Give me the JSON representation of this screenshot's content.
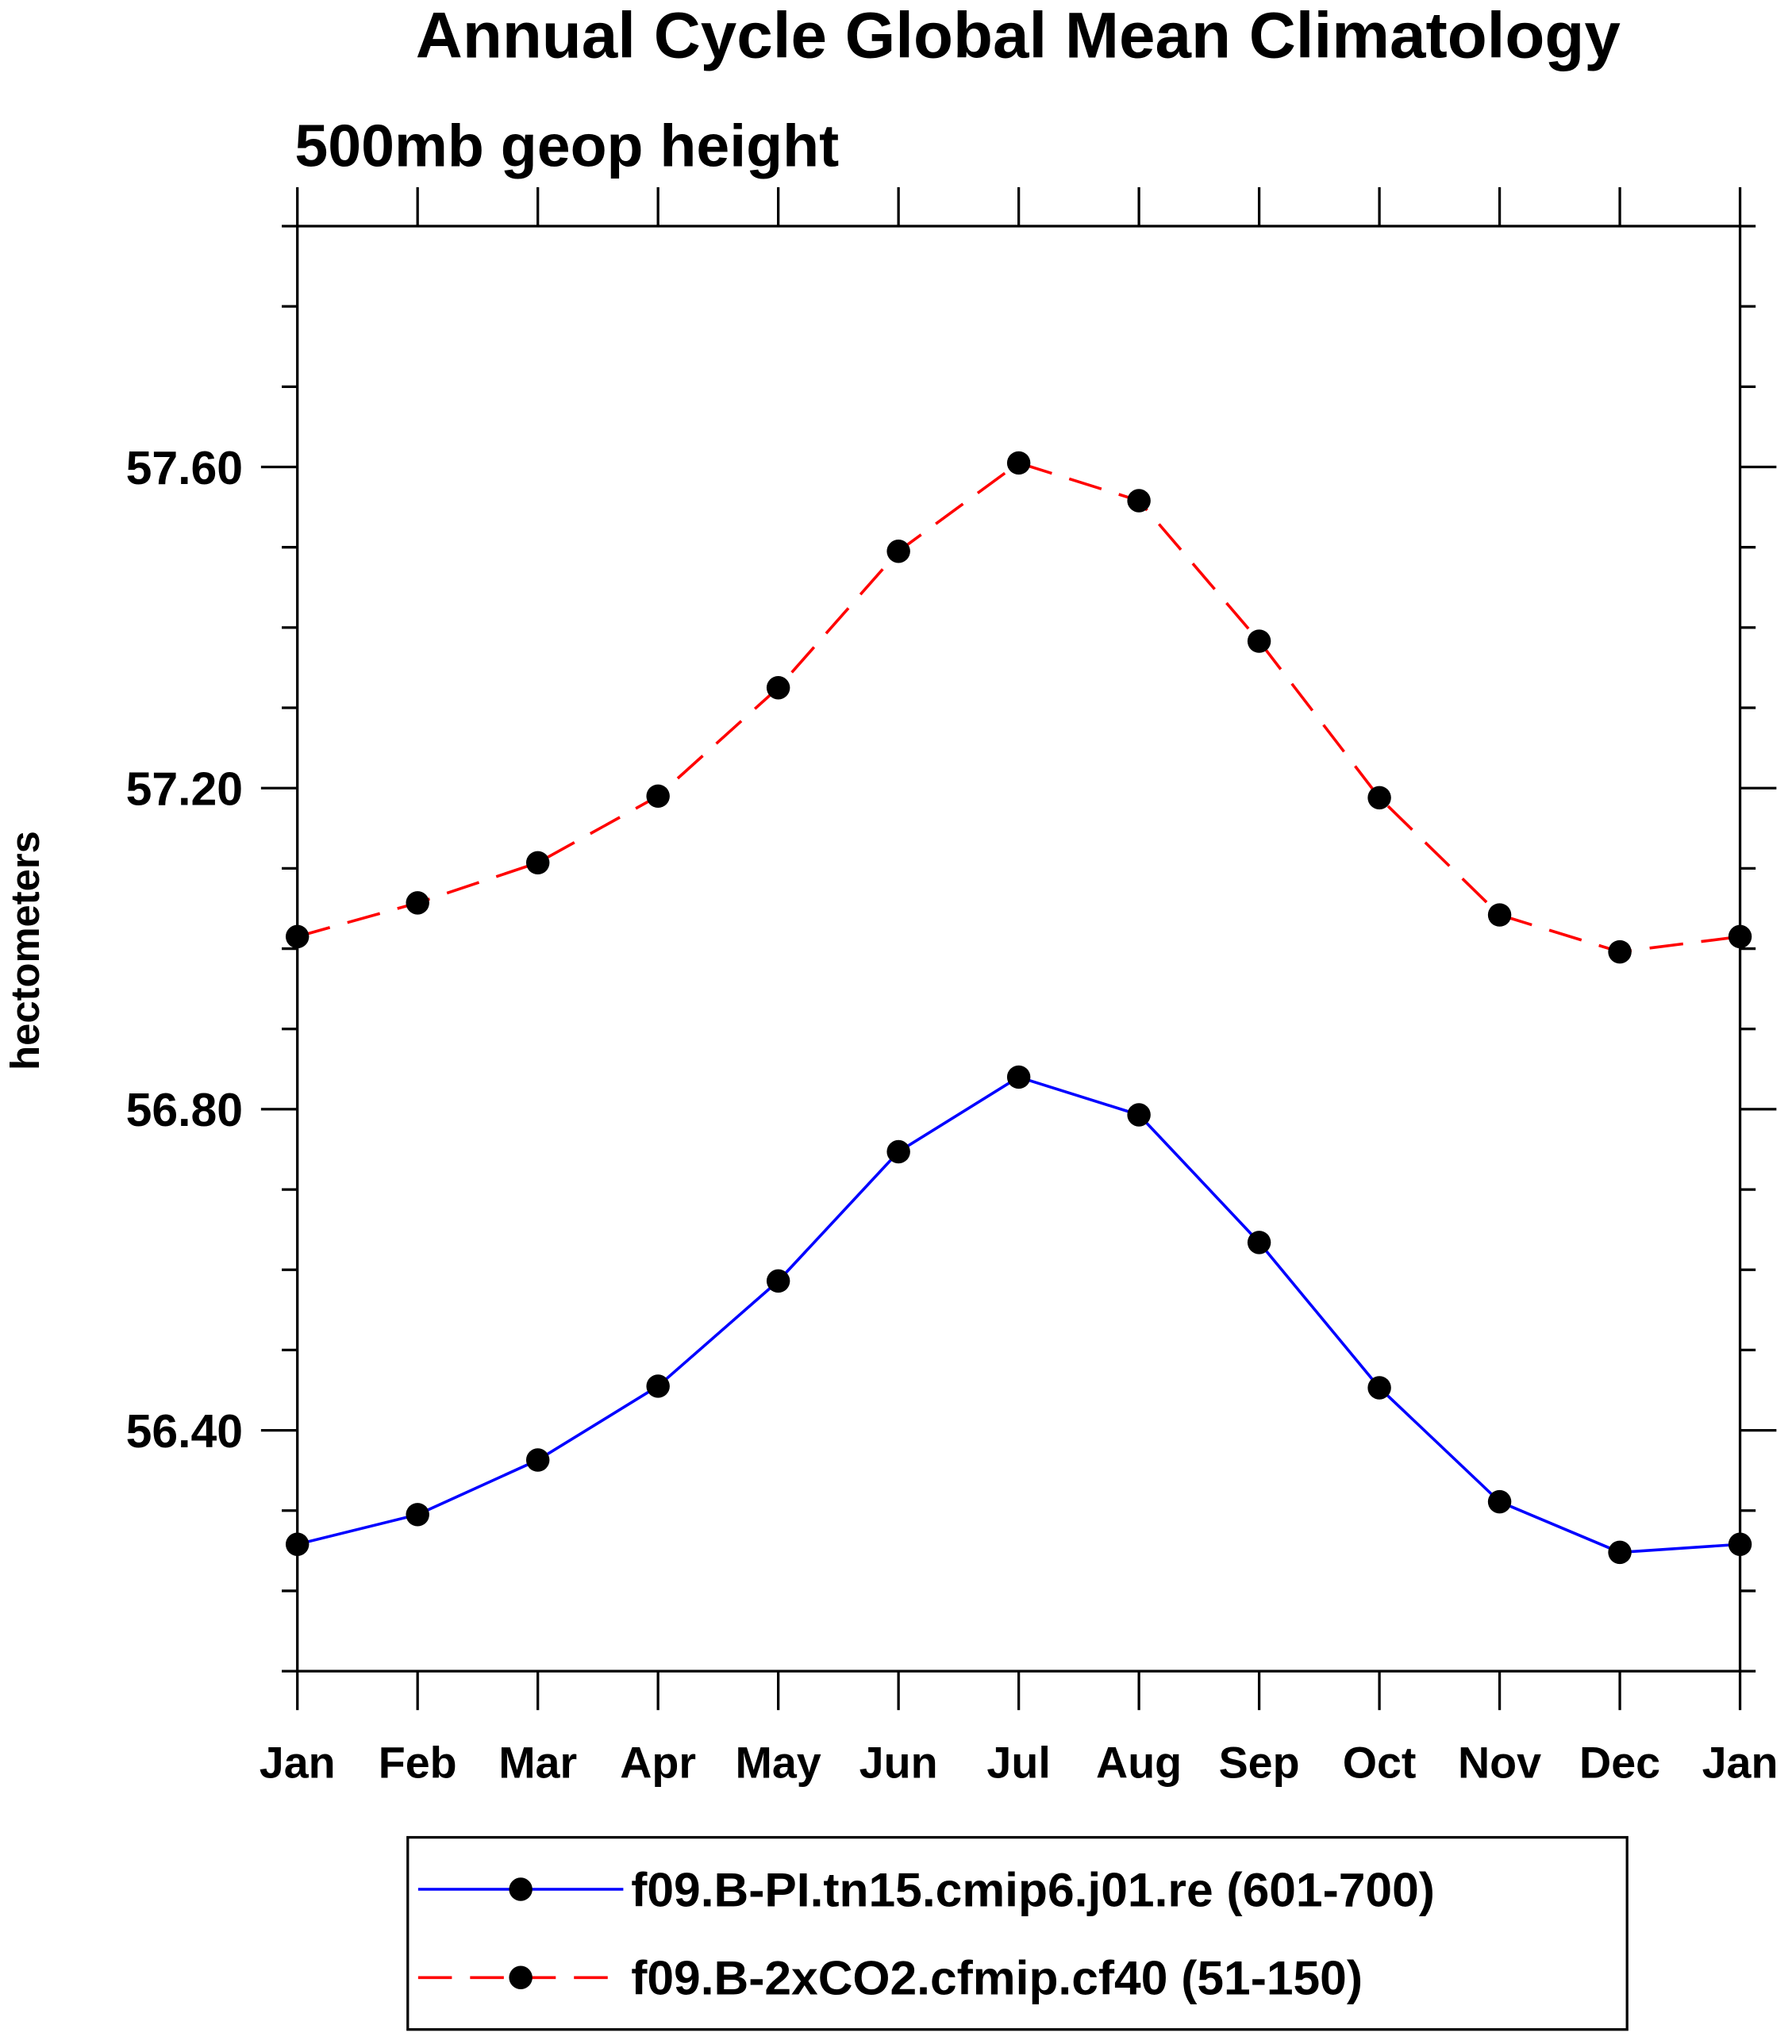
{
  "chart_data": {
    "type": "line",
    "title": "Annual Cycle Global Mean Climatology",
    "subtitle": "500mb geop height",
    "xlabel": "",
    "ylabel": "hectometers",
    "categories": [
      "Jan",
      "Feb",
      "Mar",
      "Apr",
      "May",
      "Jun",
      "Jul",
      "Aug",
      "Sep",
      "Oct",
      "Nov",
      "Dec",
      "Jan"
    ],
    "ylim": [
      56.1,
      57.9
    ],
    "yticks_major": [
      56.4,
      56.8,
      57.2,
      57.6
    ],
    "ytick_labels": [
      "56.40",
      "56.80",
      "57.20",
      "57.60"
    ],
    "ytick_minor_step": 0.1,
    "grid": false,
    "legend_position": "bottom",
    "series": [
      {
        "name": "f09.B-PI.tn15.cmip6.j01.re (601-700)",
        "color": "#0000ff",
        "dash": "solid",
        "marker": "filled-circle",
        "values": [
          56.258,
          56.295,
          56.363,
          56.455,
          56.586,
          56.747,
          56.84,
          56.793,
          56.634,
          56.453,
          56.311,
          56.248,
          56.258
        ]
      },
      {
        "name": "f09.B-2xCO2.cfmip.cf40 (51-150)",
        "color": "#ff0000",
        "dash": "dashed",
        "marker": "filled-circle",
        "values": [
          57.015,
          57.057,
          57.107,
          57.19,
          57.325,
          57.495,
          57.605,
          57.558,
          57.383,
          57.188,
          57.042,
          56.996,
          57.015
        ]
      }
    ]
  }
}
